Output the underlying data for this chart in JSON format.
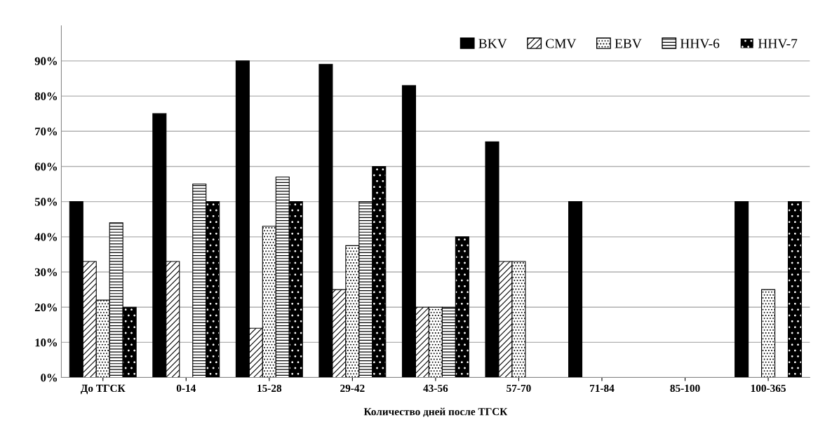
{
  "chart_data": {
    "type": "bar",
    "xlabel": "Количество дней после ТГСК",
    "categories": [
      "До ТГСК",
      "0-14",
      "15-28",
      "29-42",
      "43-56",
      "57-70",
      "71-84",
      "85-100",
      "100-365"
    ],
    "series": [
      {
        "name": "BKV",
        "color": "#000000",
        "values": [
          50,
          75,
          90,
          89,
          83,
          67,
          50,
          0,
          50
        ]
      },
      {
        "name": "CMV",
        "color": "#ffffff",
        "values": [
          33,
          33,
          14,
          25,
          20,
          33,
          0,
          0,
          0
        ]
      },
      {
        "name": "EBV",
        "color": "#ffffff",
        "values": [
          22,
          0,
          43,
          37.5,
          20,
          33,
          0,
          0,
          25
        ]
      },
      {
        "name": "HHV-6",
        "color": "#ffffff",
        "values": [
          44,
          55,
          57,
          50,
          20,
          0,
          0,
          0,
          0
        ]
      },
      {
        "name": "HHV-7",
        "color": "#000000",
        "values": [
          20,
          50,
          50,
          60,
          40,
          0,
          0,
          0,
          50
        ]
      }
    ],
    "ylim": [
      0,
      100
    ],
    "yticks": [
      {
        "value": 0,
        "label": "0%"
      },
      {
        "value": 10,
        "label": "10%"
      },
      {
        "value": 20,
        "label": "20%"
      },
      {
        "value": 30,
        "label": "30%"
      },
      {
        "value": 40,
        "label": "40%"
      },
      {
        "value": 50,
        "label": "50%"
      },
      {
        "value": 60,
        "label": "60%"
      },
      {
        "value": 70,
        "label": "70%"
      },
      {
        "value": 80,
        "label": "80%"
      },
      {
        "value": 90,
        "label": "90%"
      }
    ],
    "grid": "y",
    "legend": "top right"
  }
}
